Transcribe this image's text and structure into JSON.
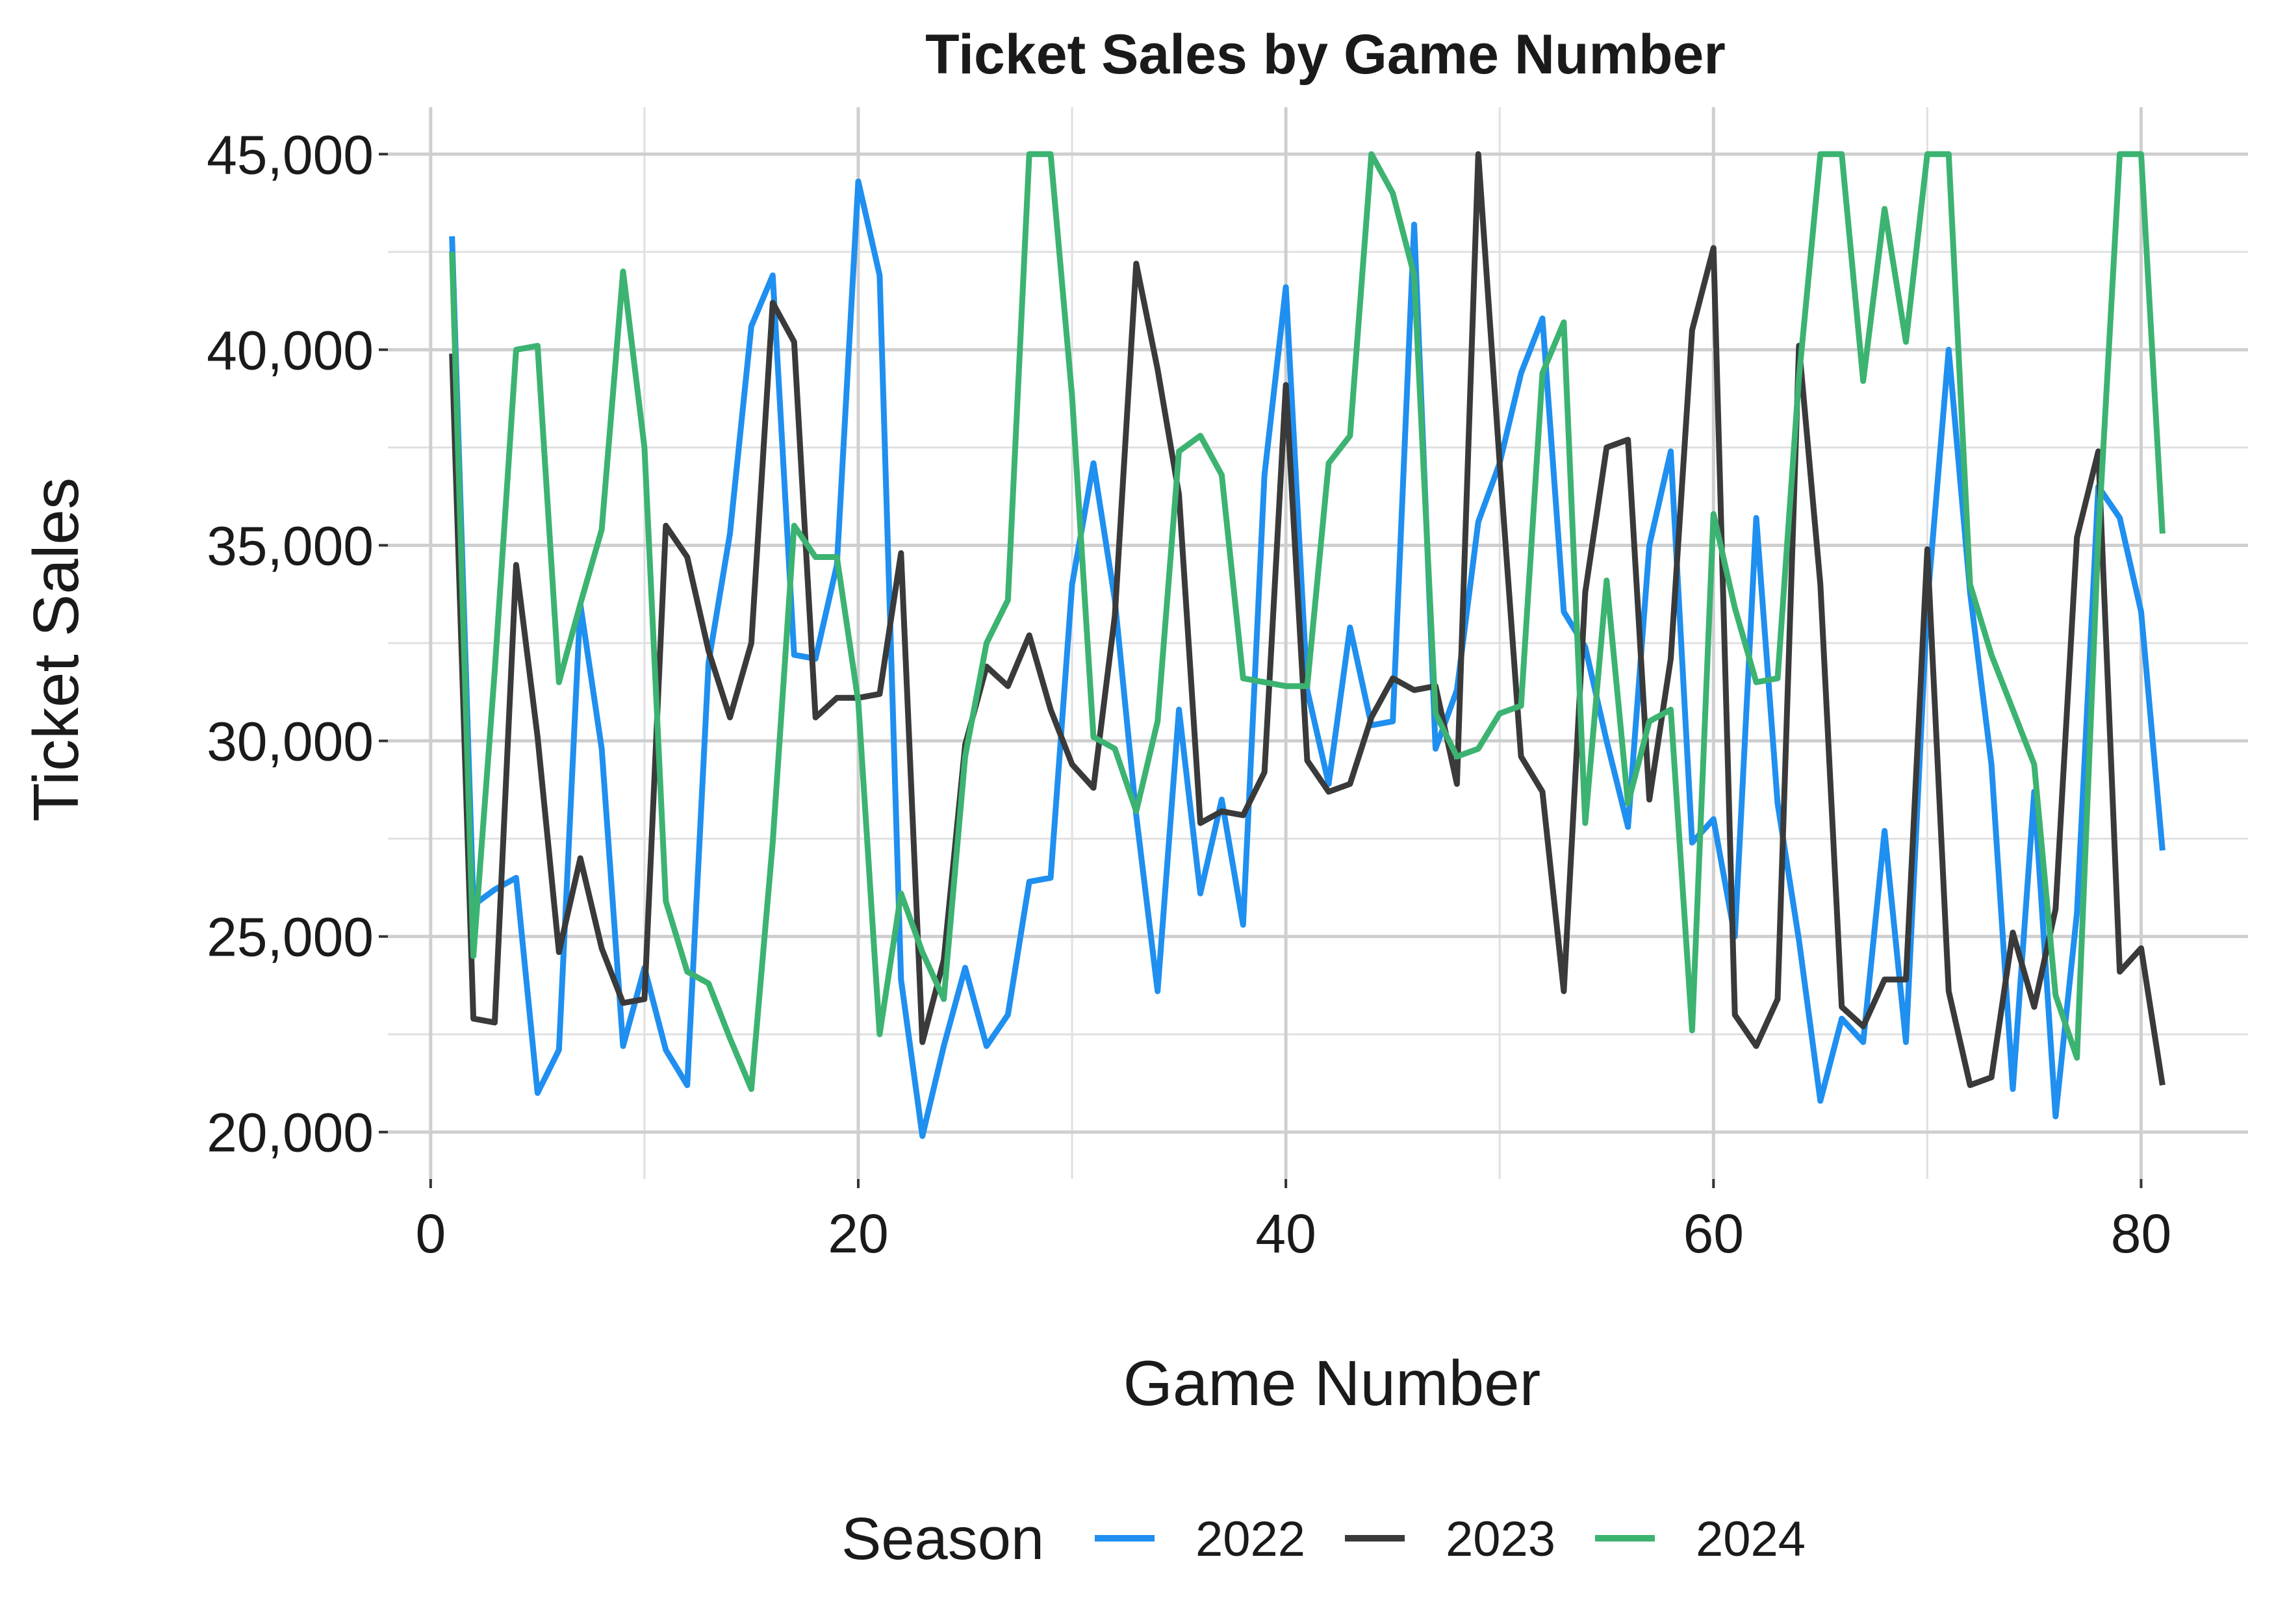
{
  "chart_data": {
    "type": "line",
    "title": "Ticket Sales by Game Number",
    "xlabel": "Game Number",
    "ylabel": "Ticket Sales",
    "xlim": [
      -2,
      85
    ],
    "ylim": [
      18800,
      46200
    ],
    "x_ticks": [
      0,
      20,
      40,
      60,
      80
    ],
    "x_tick_labels": [
      "0",
      "20",
      "40",
      "60",
      "80"
    ],
    "y_ticks": [
      20000,
      25000,
      30000,
      35000,
      40000,
      45000
    ],
    "y_tick_labels": [
      "20,000",
      "25,000",
      "30,000",
      "35,000",
      "40,000",
      "45,000"
    ],
    "grid": true,
    "legend": {
      "title": "Season",
      "position": "bottom"
    },
    "series": [
      {
        "name": "2022",
        "color": "#1f8ff0",
        "x": [
          1,
          2,
          3,
          4,
          5,
          6,
          7,
          8,
          9,
          10,
          11,
          12,
          13,
          14,
          15,
          16,
          17,
          18,
          19,
          20,
          21,
          22,
          23,
          24,
          25,
          26,
          27,
          28,
          29,
          30,
          31,
          32,
          33,
          34,
          35,
          36,
          37,
          38,
          39,
          40,
          41,
          42,
          43,
          44,
          45,
          46,
          47,
          48,
          49,
          50,
          51,
          52,
          53,
          54,
          55,
          56,
          57,
          58,
          59,
          60,
          61,
          62,
          63,
          64,
          65,
          66,
          67,
          68,
          69,
          70,
          71,
          72,
          73,
          74,
          75,
          76,
          77,
          78,
          79,
          80,
          81
        ],
        "values": [
          42900,
          25800,
          26200,
          26500,
          21000,
          22100,
          33500,
          29800,
          22200,
          24200,
          22100,
          21200,
          32000,
          35300,
          40600,
          41900,
          32200,
          32100,
          34500,
          44300,
          41900,
          23900,
          19900,
          22200,
          24200,
          22200,
          23000,
          26400,
          26500,
          34000,
          37100,
          33600,
          28100,
          23600,
          30800,
          26100,
          28500,
          25300,
          36800,
          41600,
          31300,
          28900,
          32900,
          30400,
          30500,
          43200,
          29800,
          31300,
          35600,
          37100,
          39400,
          40800,
          33300,
          32400,
          30000,
          27800,
          35000,
          37400,
          27400,
          28000,
          25000,
          35700,
          28400,
          24900,
          20800,
          22900,
          22300,
          27700,
          22300,
          33500,
          40000,
          33800,
          29400,
          21100,
          28700,
          20400,
          25600,
          36500,
          35700,
          33300,
          27200
        ]
      },
      {
        "name": "2023",
        "color": "#3a3a3a",
        "x": [
          1,
          2,
          3,
          4,
          5,
          6,
          7,
          8,
          9,
          10,
          11,
          12,
          13,
          14,
          15,
          16,
          17,
          18,
          19,
          20,
          21,
          22,
          23,
          24,
          25,
          26,
          27,
          28,
          29,
          30,
          31,
          32,
          33,
          34,
          35,
          36,
          37,
          38,
          39,
          40,
          41,
          42,
          43,
          44,
          45,
          46,
          47,
          48,
          49,
          50,
          51,
          52,
          53,
          54,
          55,
          56,
          57,
          58,
          59,
          60,
          61,
          62,
          63,
          64,
          65,
          66,
          67,
          68,
          69,
          70,
          71,
          72,
          73,
          74,
          75,
          76,
          77,
          78,
          79,
          80,
          81
        ],
        "values": [
          39900,
          22900,
          22800,
          34500,
          30100,
          24600,
          27000,
          24700,
          23300,
          23400,
          35500,
          34700,
          32300,
          30600,
          32500,
          41200,
          40200,
          30600,
          31100,
          31100,
          31200,
          34800,
          22300,
          24400,
          29900,
          31900,
          31400,
          32700,
          30800,
          29400,
          28800,
          33200,
          42200,
          39500,
          36300,
          27900,
          28200,
          28100,
          29200,
          39100,
          29500,
          28700,
          28900,
          30600,
          31600,
          31300,
          31400,
          28900,
          45000,
          37100,
          29600,
          28700,
          23600,
          33800,
          37500,
          37700,
          28500,
          32100,
          40500,
          42600,
          23000,
          22200,
          23400,
          40100,
          34000,
          23200,
          22700,
          23900,
          23900,
          34900,
          23600,
          21200,
          21400,
          25100,
          23200,
          25700,
          35200,
          37400,
          24100,
          24700,
          21200
        ]
      },
      {
        "name": "2024",
        "color": "#3cb371",
        "x": [
          1,
          2,
          3,
          4,
          5,
          6,
          7,
          8,
          9,
          10,
          11,
          12,
          13,
          14,
          15,
          16,
          17,
          18,
          19,
          20,
          21,
          22,
          23,
          24,
          25,
          26,
          27,
          28,
          29,
          30,
          31,
          32,
          33,
          34,
          35,
          36,
          37,
          38,
          39,
          40,
          41,
          42,
          43,
          44,
          45,
          46,
          47,
          48,
          49,
          50,
          51,
          52,
          53,
          54,
          55,
          56,
          57,
          58,
          59,
          60,
          61,
          62,
          63,
          64,
          65,
          66,
          67,
          68,
          69,
          70,
          71,
          72,
          73,
          74,
          75,
          76,
          77,
          78,
          79,
          80,
          81
        ],
        "values": [
          42500,
          24500,
          31800,
          40000,
          40100,
          31500,
          33500,
          35400,
          42000,
          37500,
          25900,
          24100,
          23800,
          22400,
          21100,
          27400,
          35500,
          34700,
          34700,
          31000,
          22500,
          26100,
          24600,
          23400,
          29600,
          32500,
          33600,
          45000,
          45000,
          38800,
          30100,
          29800,
          28200,
          30500,
          37400,
          37800,
          36800,
          31600,
          31500,
          31400,
          31400,
          37100,
          37800,
          45000,
          44000,
          41900,
          30700,
          29600,
          29800,
          30700,
          30900,
          39400,
          40700,
          27900,
          34100,
          28400,
          30500,
          30800,
          22600,
          35800,
          33400,
          31500,
          31600,
          39300,
          45000,
          45000,
          39200,
          43600,
          40200,
          45000,
          45000,
          34000,
          32200,
          30800,
          29400,
          23500,
          21900,
          35200,
          45000,
          45000,
          35300
        ]
      }
    ]
  }
}
